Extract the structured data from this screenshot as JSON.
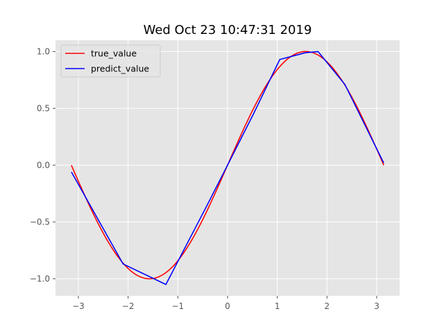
{
  "chart_data": {
    "type": "line",
    "title": "Wed Oct 23 10:47:31 2019",
    "xlabel": "",
    "ylabel": "",
    "xlim": [
      -3.46,
      3.46
    ],
    "ylim": [
      -1.15,
      1.1
    ],
    "xticks": [
      -3,
      -2,
      -1,
      0,
      1,
      2,
      3
    ],
    "xtick_labels": [
      "−3",
      "−2",
      "−1",
      "0",
      "1",
      "2",
      "3"
    ],
    "yticks": [
      -1.0,
      -0.5,
      0.0,
      0.5,
      1.0
    ],
    "ytick_labels": [
      "−1.0",
      "−0.5",
      "0.0",
      "0.5",
      "1.0"
    ],
    "grid": true,
    "legend_position": "upper-left",
    "series": [
      {
        "name": "true_value",
        "color": "#ff0000",
        "function": "sin",
        "x_range": [
          -3.1416,
          3.1416
        ]
      },
      {
        "name": "predict_value",
        "color": "#0000ff",
        "points": [
          [
            -3.14,
            -0.06
          ],
          [
            -2.1,
            -0.87
          ],
          [
            -1.24,
            -1.05
          ],
          [
            -0.42,
            -0.36
          ],
          [
            0.0,
            0.0
          ],
          [
            0.52,
            0.45
          ],
          [
            1.05,
            0.93
          ],
          [
            1.57,
            0.99
          ],
          [
            1.82,
            1.0
          ],
          [
            2.36,
            0.71
          ],
          [
            3.14,
            0.02
          ]
        ]
      }
    ]
  }
}
